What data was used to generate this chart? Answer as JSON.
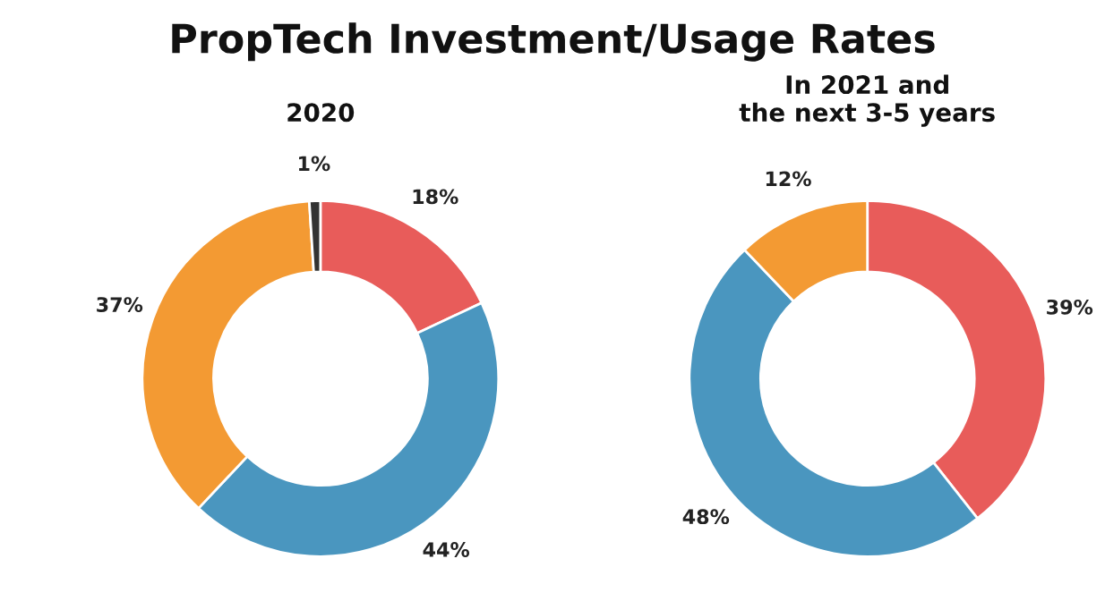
{
  "chart_data": [
    {
      "type": "donut",
      "title": "PropTech Investment/Usage Rates",
      "subtitle": "2020",
      "categories": [
        null,
        null,
        null,
        null
      ],
      "values": [
        18,
        44,
        37,
        1
      ],
      "colors": [
        "#e85c5a",
        "#4a96bf",
        "#f39a33",
        "#333333"
      ],
      "value_labels": [
        "18%",
        "44%",
        "37%",
        "1%"
      ]
    },
    {
      "type": "donut",
      "subtitle": "In 2021 and\nthe next 3-5 years",
      "categories": [
        null,
        null,
        null
      ],
      "values": [
        39,
        48,
        12
      ],
      "colors": [
        "#e85c5a",
        "#4a96bf",
        "#f39a33"
      ],
      "value_labels": [
        "39%",
        "48%",
        "12%"
      ]
    }
  ]
}
